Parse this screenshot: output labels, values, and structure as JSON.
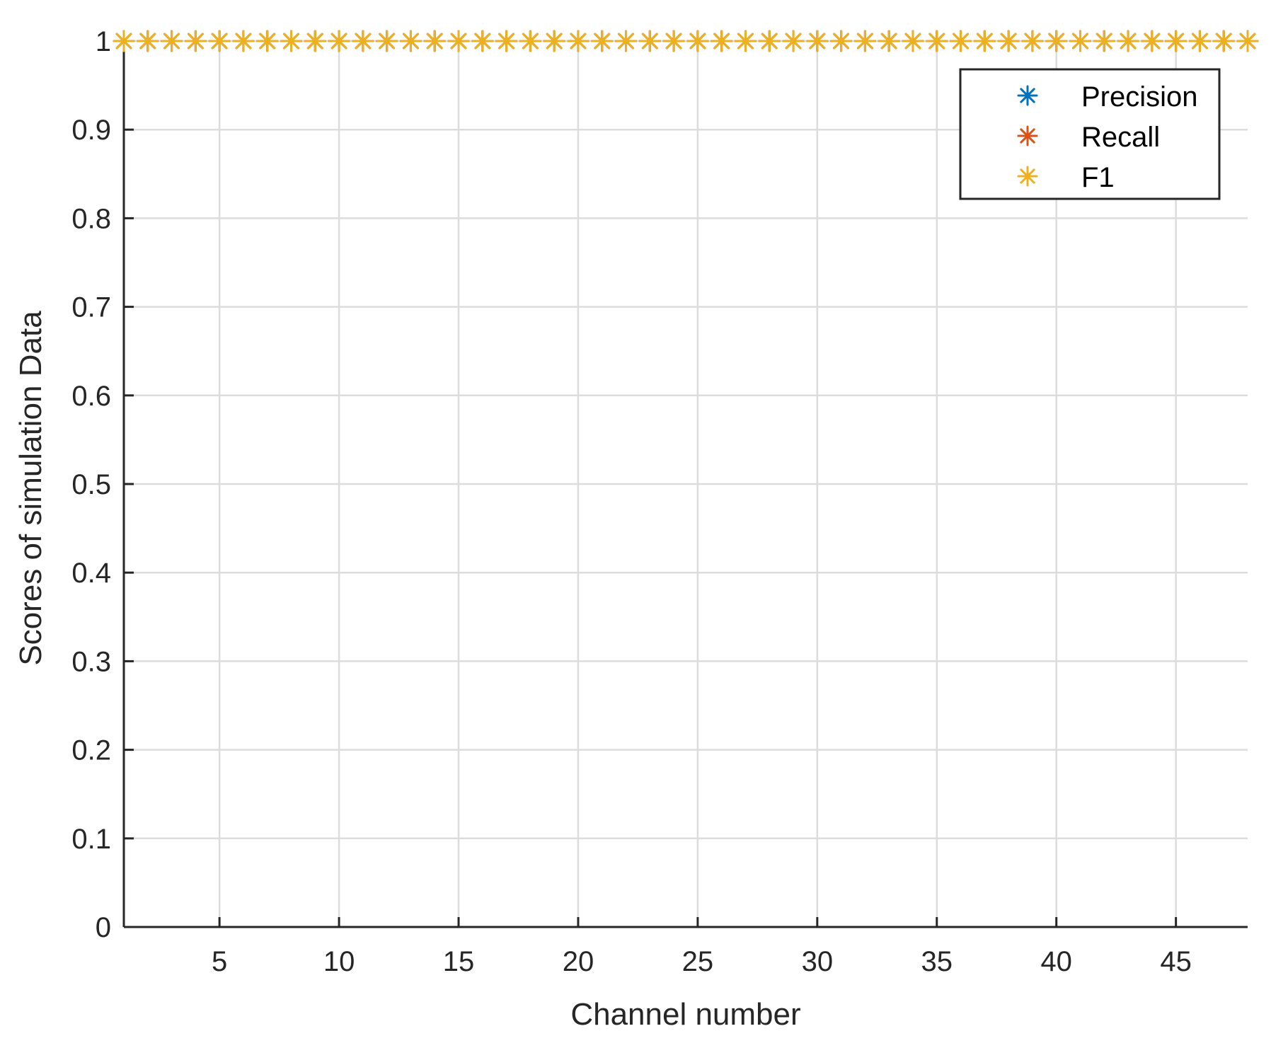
{
  "chart_data": {
    "type": "scatter",
    "title": "",
    "xlabel": "Channel number",
    "ylabel": "Scores of simulation Data",
    "xlim": [
      1,
      48
    ],
    "ylim": [
      0,
      1
    ],
    "xticks": [
      5,
      10,
      15,
      20,
      25,
      30,
      35,
      40,
      45
    ],
    "yticks": [
      0,
      0.1,
      0.2,
      0.3,
      0.4,
      0.5,
      0.6,
      0.7,
      0.8,
      0.9,
      1
    ],
    "ytick_labels": [
      "0",
      "0.1",
      "0.2",
      "0.3",
      "0.4",
      "0.5",
      "0.6",
      "0.7",
      "0.8",
      "0.9",
      "1"
    ],
    "grid": true,
    "legend_position": "top-right",
    "marker": "asterisk",
    "x": [
      1,
      2,
      3,
      4,
      5,
      6,
      7,
      8,
      9,
      10,
      11,
      12,
      13,
      14,
      15,
      16,
      17,
      18,
      19,
      20,
      21,
      22,
      23,
      24,
      25,
      26,
      27,
      28,
      29,
      30,
      31,
      32,
      33,
      34,
      35,
      36,
      37,
      38,
      39,
      40,
      41,
      42,
      43,
      44,
      45,
      46,
      47,
      48
    ],
    "series": [
      {
        "name": "Precision",
        "color": "#0072BD",
        "values": [
          1,
          1,
          1,
          1,
          1,
          1,
          1,
          1,
          1,
          1,
          1,
          1,
          1,
          1,
          1,
          1,
          1,
          1,
          1,
          1,
          1,
          1,
          1,
          1,
          1,
          1,
          1,
          1,
          1,
          1,
          1,
          1,
          1,
          1,
          1,
          1,
          1,
          1,
          1,
          1,
          1,
          1,
          1,
          1,
          1,
          1,
          1,
          1
        ]
      },
      {
        "name": "Recall",
        "color": "#D95319",
        "values": [
          1,
          1,
          1,
          1,
          1,
          1,
          1,
          1,
          1,
          1,
          1,
          1,
          1,
          1,
          1,
          1,
          1,
          1,
          1,
          1,
          1,
          1,
          1,
          1,
          1,
          1,
          1,
          1,
          1,
          1,
          1,
          1,
          1,
          1,
          1,
          1,
          1,
          1,
          1,
          1,
          1,
          1,
          1,
          1,
          1,
          1,
          1,
          1
        ]
      },
      {
        "name": "F1",
        "color": "#EDB120",
        "values": [
          1,
          1,
          1,
          1,
          1,
          1,
          1,
          1,
          1,
          1,
          1,
          1,
          1,
          1,
          1,
          1,
          1,
          1,
          1,
          1,
          1,
          1,
          1,
          1,
          1,
          1,
          1,
          1,
          1,
          1,
          1,
          1,
          1,
          1,
          1,
          1,
          1,
          1,
          1,
          1,
          1,
          1,
          1,
          1,
          1,
          1,
          1,
          1
        ]
      }
    ]
  }
}
